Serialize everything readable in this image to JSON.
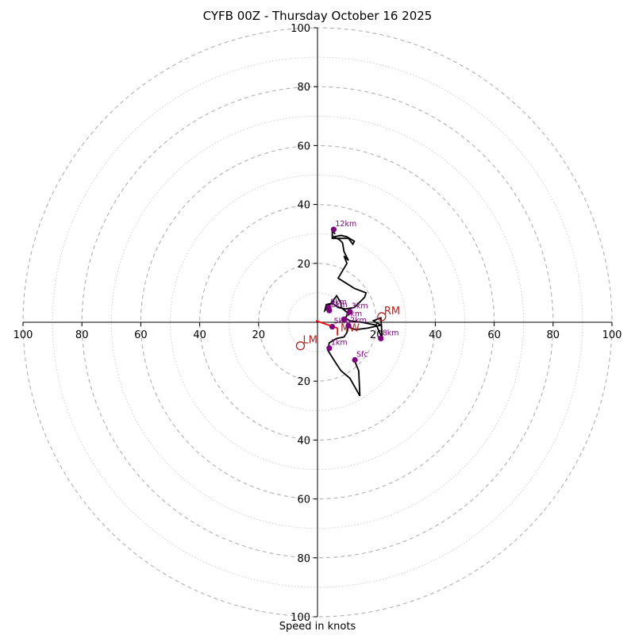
{
  "chart_data": {
    "type": "hodograph",
    "title": "CYFB 00Z - Thursday October 16 2025",
    "xlabel": "Speed in knots",
    "range": [
      -100,
      100
    ],
    "ring_interval": 20,
    "minor_ring_interval": 10,
    "tick_labels_x": [
      "100",
      "80",
      "60",
      "40",
      "20",
      "20",
      "40",
      "60",
      "80",
      "100"
    ],
    "tick_labels_y": [
      "100",
      "80",
      "60",
      "40",
      "20",
      "20",
      "40",
      "60",
      "80",
      "100"
    ],
    "tick_values": [
      -100,
      -80,
      -60,
      -40,
      -20,
      20,
      40,
      60,
      80,
      100
    ],
    "hodograph_trace": [
      [
        12.5,
        -12.8
      ],
      [
        14.0,
        -16.5
      ],
      [
        14.4,
        -25.0
      ],
      [
        11.0,
        -19.0
      ],
      [
        8.0,
        -16.5
      ],
      [
        6.0,
        -13.5
      ],
      [
        3.5,
        -9.5
      ],
      [
        4.0,
        -7.0
      ],
      [
        6.5,
        -5.5
      ],
      [
        9.0,
        -5.0
      ],
      [
        10.0,
        -3.5
      ],
      [
        10.2,
        -1.5
      ],
      [
        13.0,
        -2.5
      ],
      [
        17.0,
        -2.0
      ],
      [
        21.5,
        -1.0
      ],
      [
        19.0,
        0.5
      ],
      [
        21.5,
        1.5
      ],
      [
        22.0,
        -5.5
      ],
      [
        20.0,
        -1.0
      ],
      [
        15.0,
        0.0
      ],
      [
        11.0,
        0.5
      ],
      [
        9.5,
        1.5
      ],
      [
        10.5,
        3.0
      ],
      [
        8.0,
        5.0
      ],
      [
        8.0,
        6.5
      ],
      [
        6.5,
        9.0
      ],
      [
        5.0,
        7.0
      ],
      [
        3.5,
        5.0
      ],
      [
        2.5,
        4.0
      ],
      [
        3.0,
        6.0
      ],
      [
        5.0,
        6.5
      ],
      [
        7.0,
        5.0
      ],
      [
        9.5,
        4.5
      ],
      [
        12.5,
        5.0
      ],
      [
        16.0,
        8.5
      ],
      [
        16.5,
        10.0
      ],
      [
        12.5,
        11.5
      ],
      [
        7.0,
        15.0
      ],
      [
        10.0,
        20.0
      ],
      [
        9.0,
        22.5
      ],
      [
        10.5,
        21.0
      ],
      [
        9.0,
        24.0
      ],
      [
        8.5,
        27.0
      ],
      [
        7.5,
        28.0
      ],
      [
        5.5,
        29.0
      ],
      [
        8.0,
        29.5
      ],
      [
        10.0,
        29.0
      ],
      [
        12.5,
        27.5
      ],
      [
        12.0,
        26.5
      ],
      [
        10.5,
        28.5
      ],
      [
        5.0,
        28.5
      ],
      [
        5.0,
        31.0
      ],
      [
        6.0,
        30.0
      ]
    ],
    "height_markers": [
      {
        "label": "Sfc",
        "u": 12.7,
        "v": -12.8
      },
      {
        "label": "1km",
        "u": 4.0,
        "v": -8.8
      },
      {
        "label": "2km",
        "u": 10.5,
        "v": -1.2
      },
      {
        "label": "3km",
        "u": 11.0,
        "v": 3.6
      },
      {
        "label": "4km",
        "u": 9.0,
        "v": 1.0
      },
      {
        "label": "5km",
        "u": 5.0,
        "v": -1.5
      },
      {
        "label": "6km",
        "u": 4.0,
        "v": 4.0
      },
      {
        "label": "8km",
        "u": 21.5,
        "v": -5.5
      },
      {
        "label": "9km",
        "u": 3.8,
        "v": 5.0
      },
      {
        "label": "12km",
        "u": 5.5,
        "v": 31.5
      }
    ],
    "storm_motion": [
      {
        "label": "RM",
        "u": 21.8,
        "v": 1.9
      },
      {
        "label": "LM",
        "u": -5.8,
        "v": -8.0
      }
    ],
    "mean_wind": {
      "label": "MW",
      "u": 7.0,
      "v": -2.0
    },
    "mean_wind_vector": {
      "from": [
        -0.5,
        0.5
      ],
      "to": [
        6.8,
        -2.0
      ]
    },
    "mean_wind_vector_2": {
      "from": [
        6.8,
        -2.0
      ],
      "to": [
        6.8,
        -4.5
      ]
    },
    "colors": {
      "trace": "#000000",
      "marker": "#800080",
      "storm": "#b22222",
      "mean_wind": "#ff0000",
      "ring_major": "#b0b0b0",
      "ring_minor": "#c8c8c8"
    }
  }
}
